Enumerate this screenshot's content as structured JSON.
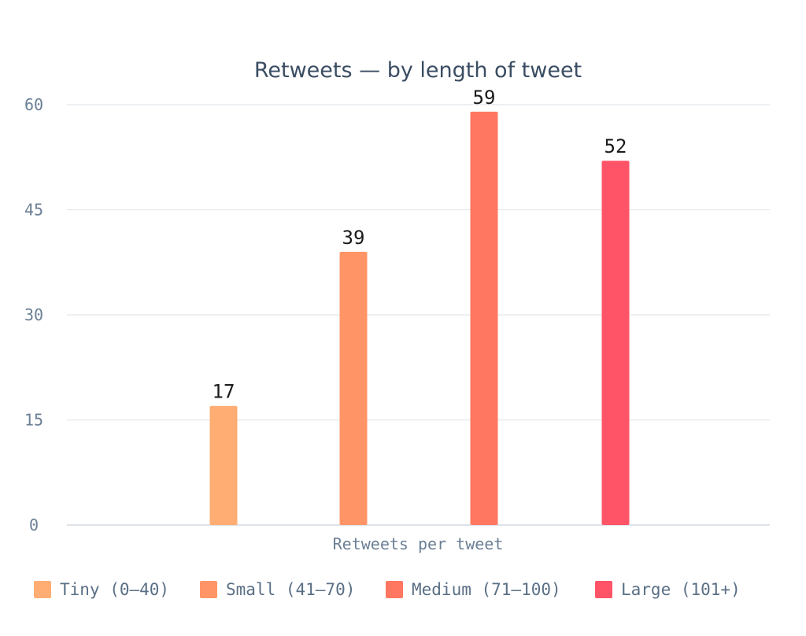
{
  "chart_data": {
    "type": "bar",
    "title": "Retweets — by length of tweet",
    "xlabel": "Retweets per tweet",
    "ylabel": "",
    "ylim": [
      0,
      60
    ],
    "yticks": [
      0,
      15,
      30,
      45,
      60
    ],
    "grid": true,
    "legend_position": "bottom",
    "series": [
      {
        "name": "Tiny (0–40)",
        "value": 17,
        "color": "#ffad72"
      },
      {
        "name": "Small (41–70)",
        "value": 39,
        "color": "#ff9566"
      },
      {
        "name": "Medium (71–100)",
        "value": 59,
        "color": "#ff7760"
      },
      {
        "name": "Large (101+)",
        "value": 52,
        "color": "#ff5467"
      }
    ]
  }
}
